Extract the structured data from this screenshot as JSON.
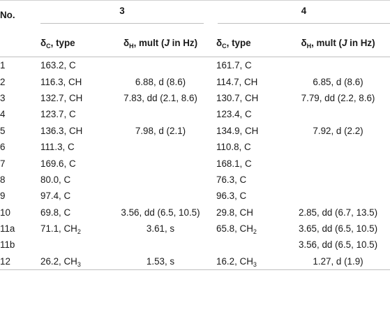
{
  "header": {
    "no_label": "No.",
    "compound_a": "3",
    "compound_b": "4",
    "delta_c_type": "δC, type",
    "delta_h_mult": "δH, mult (J in Hz)"
  },
  "rows": [
    {
      "no": "1",
      "c3": "163.2, C",
      "h3": "",
      "c4": "161.7, C",
      "h4": ""
    },
    {
      "no": "2",
      "c3": "116.3, CH",
      "h3": "6.88, d (8.6)",
      "c4": "114.7, CH",
      "h4": "6.85, d (8.6)"
    },
    {
      "no": "3",
      "c3": "132.7, CH",
      "h3": "7.83, dd (2.1, 8.6)",
      "c4": "130.7, CH",
      "h4": "7.79, dd (2.2, 8.6)"
    },
    {
      "no": "4",
      "c3": "123.7, C",
      "h3": "",
      "c4": "123.4, C",
      "h4": ""
    },
    {
      "no": "5",
      "c3": "136.3, CH",
      "h3": "7.98, d (2.1)",
      "c4": "134.9, CH",
      "h4": "7.92, d (2.2)"
    },
    {
      "no": "6",
      "c3": "111.3, C",
      "h3": "",
      "c4": "110.8, C",
      "h4": ""
    },
    {
      "no": "7",
      "c3": "169.6, C",
      "h3": "",
      "c4": "168.1, C",
      "h4": ""
    },
    {
      "no": "8",
      "c3": "80.0, C",
      "h3": "",
      "c4": "76.3, C",
      "h4": ""
    },
    {
      "no": "9",
      "c3": "97.4, C",
      "h3": "",
      "c4": "96.3, C",
      "h4": ""
    },
    {
      "no": "10",
      "c3": "69.8, C",
      "h3": "3.56, dd (6.5, 10.5)",
      "c4": "29.8, CH",
      "h4": "2.85, dd (6.7, 13.5)"
    },
    {
      "no": "11a",
      "c3": "71.1, CH2",
      "h3": "3.61, s",
      "c4": "65.8, CH2",
      "h4": "3.65, dd (6.5, 10.5)"
    },
    {
      "no": "11b",
      "c3": "",
      "h3": "",
      "c4": "",
      "h4": "3.56, dd (6.5, 10.5)"
    },
    {
      "no": "12",
      "c3": "26.2, CH3",
      "h3": "1.53, s",
      "c4": "16.2, CH3",
      "h4": "1.27, d (1.9)"
    }
  ]
}
